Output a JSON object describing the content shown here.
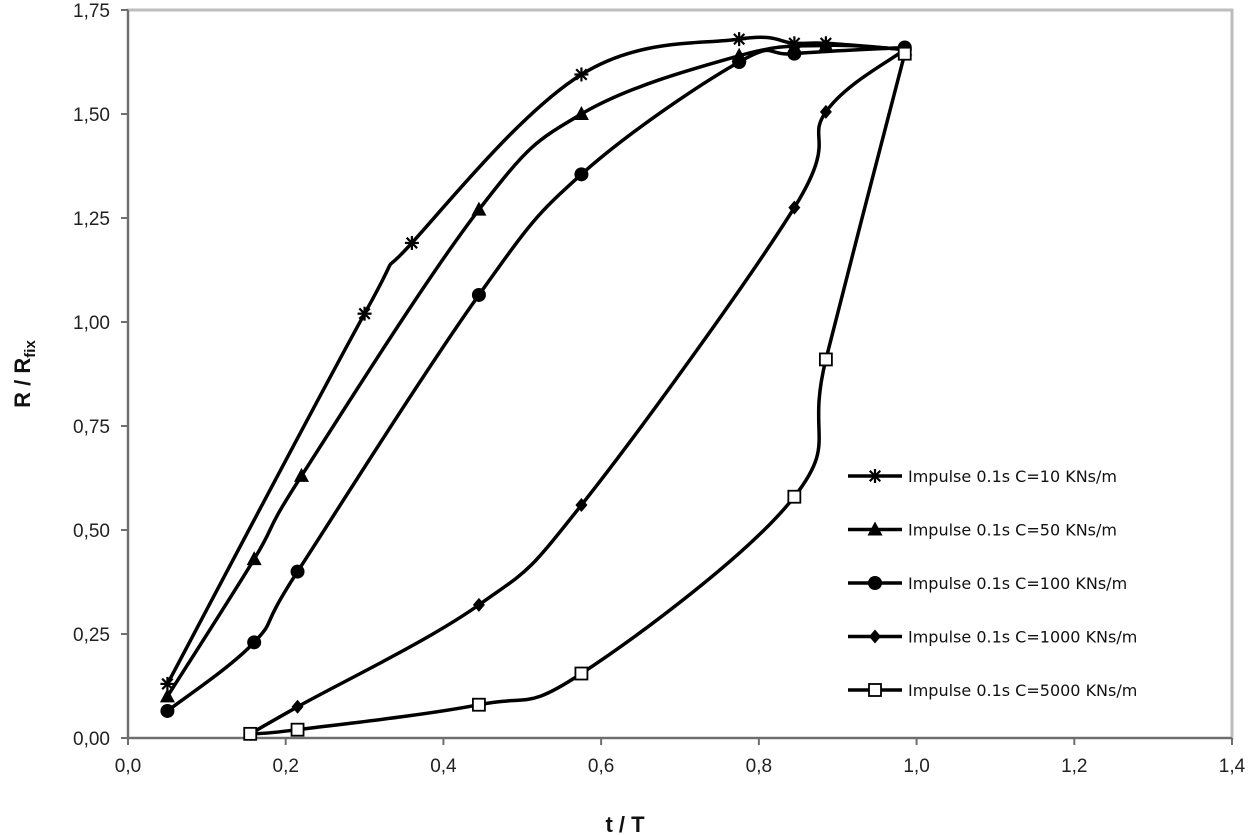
{
  "chart_data": {
    "type": "line",
    "title": "",
    "xlabel": "t / T",
    "ylabel_main": "R / R",
    "ylabel_sub": "fix",
    "xlim": [
      0.0,
      1.4
    ],
    "ylim": [
      0.0,
      1.75
    ],
    "x_ticks": [
      "0,0",
      "0,2",
      "0,4",
      "0,6",
      "0,8",
      "1,0",
      "1,2",
      "1,4"
    ],
    "y_ticks": [
      "0,00",
      "0,25",
      "0,50",
      "0,75",
      "1,00",
      "1,25",
      "1,50",
      "1,75"
    ],
    "grid": false,
    "legend_position": "right",
    "series": [
      {
        "name": "Impulse 0.1s C=10 KNs/m",
        "marker": "asterisk",
        "x": [
          0.05,
          0.3,
          0.36,
          0.575,
          0.775,
          0.845,
          0.885,
          0.985
        ],
        "y": [
          0.13,
          1.02,
          1.19,
          1.595,
          1.68,
          1.67,
          1.67,
          1.655
        ]
      },
      {
        "name": "Impulse 0.1s C=50 KNs/m",
        "marker": "triangle",
        "x": [
          0.05,
          0.16,
          0.22,
          0.445,
          0.575,
          0.775,
          0.885,
          0.985
        ],
        "y": [
          0.1,
          0.43,
          0.63,
          1.27,
          1.5,
          1.64,
          1.665,
          1.655
        ]
      },
      {
        "name": "Impulse 0.1s C=100 KNs/m",
        "marker": "circle",
        "x": [
          0.05,
          0.16,
          0.215,
          0.445,
          0.575,
          0.775,
          0.845,
          0.985
        ],
        "y": [
          0.065,
          0.23,
          0.4,
          1.065,
          1.355,
          1.625,
          1.645,
          1.66
        ]
      },
      {
        "name": "Impulse 0.1s C=1000 KNs/m",
        "marker": "diamond",
        "x": [
          0.155,
          0.215,
          0.445,
          0.575,
          0.845,
          0.885,
          0.985
        ],
        "y": [
          0.01,
          0.075,
          0.32,
          0.56,
          1.275,
          1.505,
          1.655
        ]
      },
      {
        "name": "Impulse 0.1s C=5000 KNs/m",
        "marker": "square-open",
        "x": [
          0.155,
          0.215,
          0.445,
          0.575,
          0.845,
          0.885,
          0.985
        ],
        "y": [
          0.01,
          0.02,
          0.08,
          0.155,
          0.58,
          0.91,
          1.645
        ]
      }
    ]
  },
  "colors": {
    "line": "#000000",
    "frame": "#bdbdbd",
    "axis": "#6e6e6e"
  }
}
